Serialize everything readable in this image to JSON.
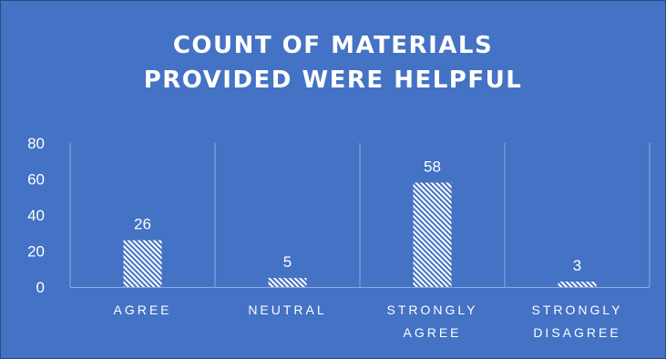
{
  "chart_data": {
    "type": "bar",
    "title": "COUNT OF MATERIALS\nPROVIDED WERE HELPFUL",
    "categories": [
      [
        "AGREE"
      ],
      [
        "NEUTRAL"
      ],
      [
        "STRONGLY",
        "AGREE"
      ],
      [
        "STRONGLY",
        "DISAGREE"
      ]
    ],
    "values": [
      26,
      5,
      58,
      3
    ],
    "data_labels": [
      "26",
      "5",
      "58",
      "3"
    ],
    "y_ticks": [
      "0",
      "20",
      "40",
      "60",
      "80"
    ],
    "ylim": [
      0,
      80
    ],
    "grid": "vertical separators between categories",
    "legend": "none",
    "colors": {
      "background": "#4472c4",
      "text": "#ffffff",
      "bar_hatch": "#ffffff",
      "gridline": "#8fa9dc"
    }
  }
}
